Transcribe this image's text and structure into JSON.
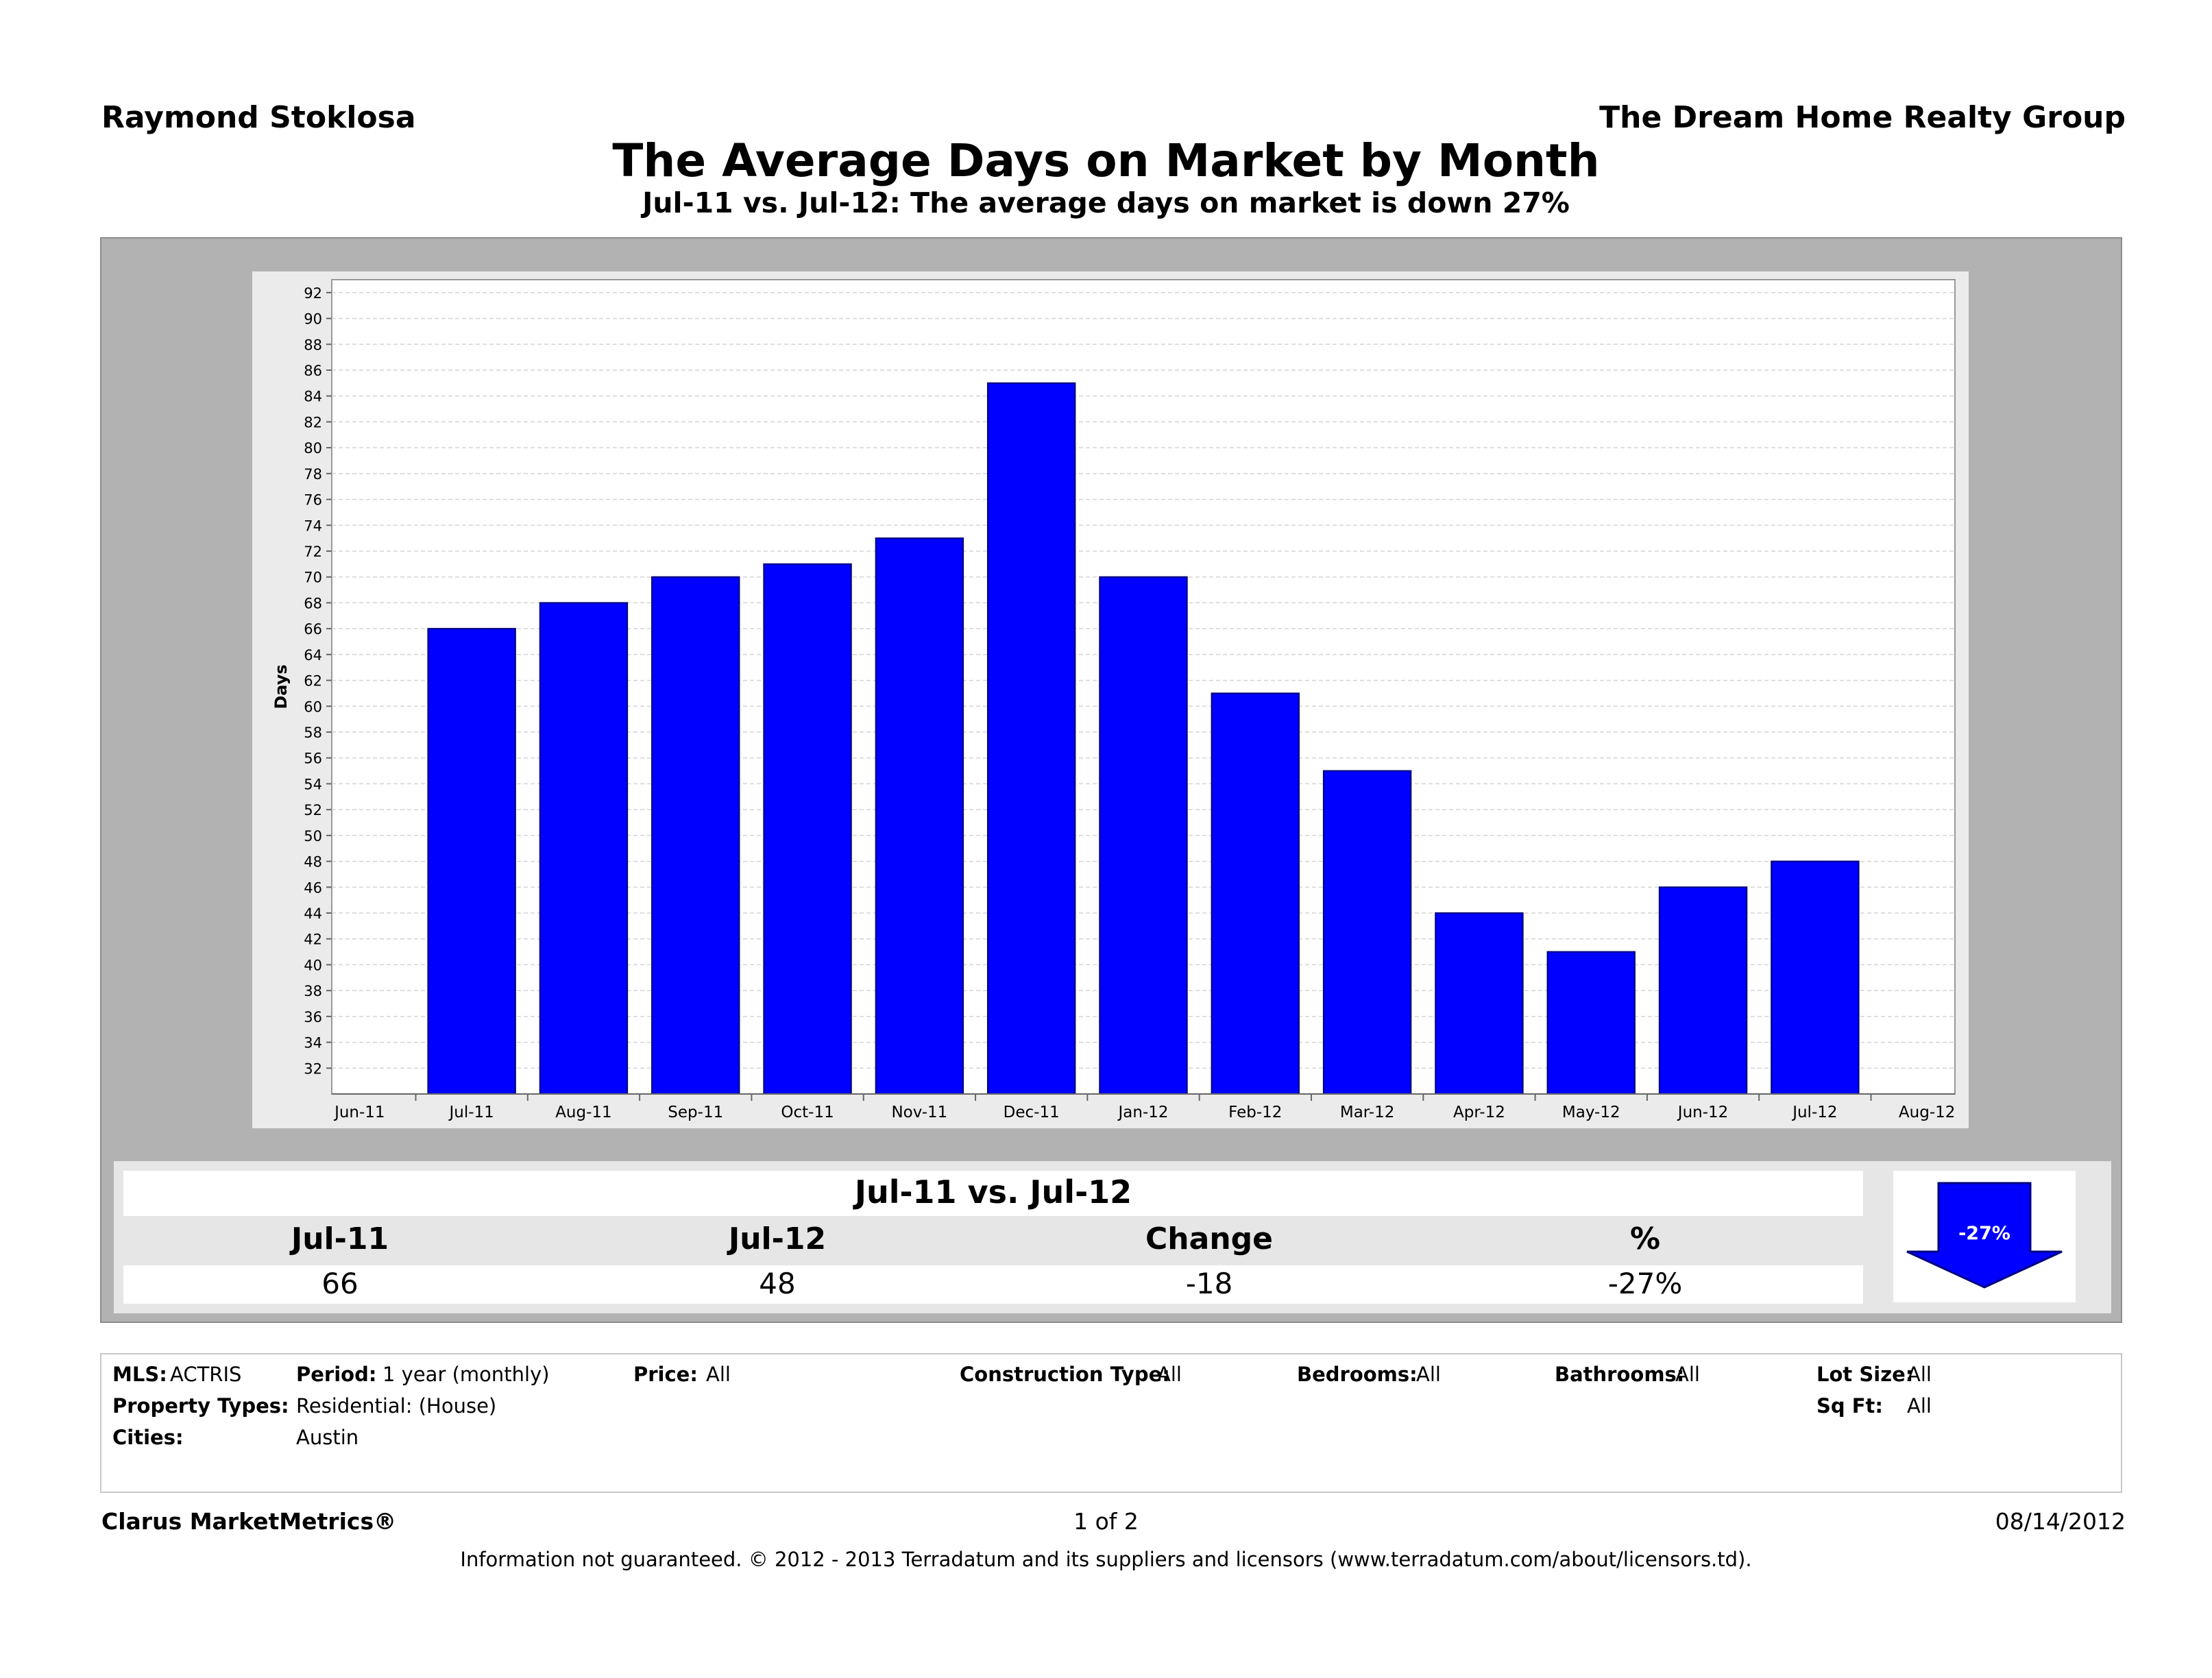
{
  "header": {
    "agent": "Raymond Stoklosa",
    "company": "The Dream Home Realty Group",
    "title": "The Average Days on Market by Month",
    "subtitle": "Jul-11 vs. Jul-12:  The average days on market is down 27%"
  },
  "chart_data": {
    "type": "bar",
    "ylabel": "Days",
    "ylim": [
      30,
      93
    ],
    "yticks": [
      32,
      34,
      36,
      38,
      40,
      42,
      44,
      46,
      48,
      50,
      52,
      54,
      56,
      58,
      60,
      62,
      64,
      66,
      68,
      70,
      72,
      74,
      76,
      78,
      80,
      82,
      84,
      86,
      88,
      90,
      92
    ],
    "x_axis_labels": [
      "Jun-11",
      "Jul-11",
      "Aug-11",
      "Sep-11",
      "Oct-11",
      "Nov-11",
      "Dec-11",
      "Jan-12",
      "Feb-12",
      "Mar-12",
      "Apr-12",
      "May-12",
      "Jun-12",
      "Jul-12",
      "Aug-12"
    ],
    "categories": [
      "Jul-11",
      "Aug-11",
      "Sep-11",
      "Oct-11",
      "Nov-11",
      "Dec-11",
      "Jan-12",
      "Feb-12",
      "Mar-12",
      "Apr-12",
      "May-12",
      "Jun-12",
      "Jul-12"
    ],
    "values": [
      66,
      68,
      70,
      71,
      73,
      85,
      70,
      61,
      55,
      44,
      41,
      46,
      48
    ],
    "bar_color": "#0000ff",
    "grid": true
  },
  "summary": {
    "title": "Jul-11 vs. Jul-12",
    "headers": [
      "Jul-11",
      "Jul-12",
      "Change",
      "%"
    ],
    "values": [
      "66",
      "48",
      "-18",
      "-27%"
    ],
    "arrow_label": "-27%",
    "arrow_color": "#0000ff"
  },
  "filters": {
    "mls_label": "MLS:",
    "mls_value": "ACTRIS",
    "period_label": "Period:",
    "period_value": "1 year (monthly)",
    "price_label": "Price:",
    "price_value": "All",
    "construction_label": "Construction Type:",
    "construction_value": "All",
    "bedrooms_label": "Bedrooms:",
    "bedrooms_value": "All",
    "bathrooms_label": "Bathrooms:",
    "bathrooms_value": "All",
    "lotsize_label": "Lot Size:",
    "lotsize_value": "All",
    "proptype_label": "Property Types:",
    "proptype_value": "Residential: (House)",
    "sqft_label": "Sq Ft:",
    "sqft_value": "All",
    "cities_label": "Cities:",
    "cities_value": "Austin"
  },
  "footer": {
    "brand": "Clarus MarketMetrics®",
    "page": "1 of 2",
    "date": "08/14/2012",
    "disclaimer": "Information not guaranteed.  © 2012 - 2013 Terradatum and its suppliers and licensors (www.terradatum.com/about/licensors.td)."
  }
}
